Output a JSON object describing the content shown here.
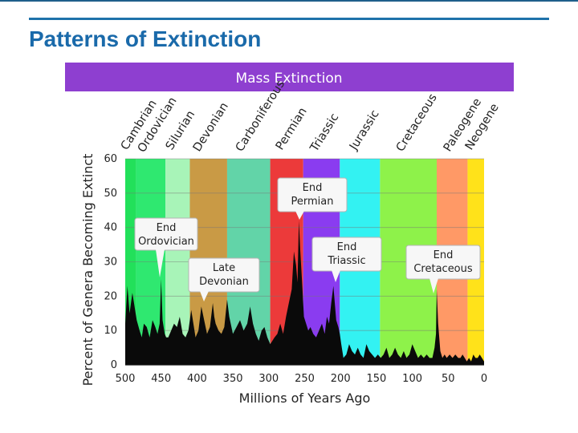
{
  "slide": {
    "title": "Patterns of Extinction"
  },
  "chart_data": {
    "type": "area",
    "title": "Mass Extinction",
    "xlabel": "Millions of Years Ago",
    "ylabel": "Percent of Genera Becoming Extinct",
    "xlim": [
      500,
      0
    ],
    "ylim": [
      0,
      60
    ],
    "xticks": [
      500,
      450,
      400,
      350,
      300,
      250,
      200,
      150,
      100,
      50,
      0
    ],
    "yticks": [
      0,
      10,
      20,
      30,
      40,
      50,
      60
    ],
    "grid": true,
    "colors": {
      "banner": "#8e3fd0",
      "area": "#0a0a0a"
    },
    "periods": [
      {
        "name": "Cambrian",
        "start": 500,
        "end": 485,
        "color": "#22e05a"
      },
      {
        "name": "Ordovician",
        "start": 485,
        "end": 444,
        "color": "#2fe870"
      },
      {
        "name": "Silurian",
        "start": 444,
        "end": 410,
        "color": "#a8f4b8"
      },
      {
        "name": "Devonian",
        "start": 410,
        "end": 358,
        "color": "#c99a45"
      },
      {
        "name": "Carboniferous",
        "start": 358,
        "end": 298,
        "color": "#62d4a8"
      },
      {
        "name": "Permian",
        "start": 298,
        "end": 252,
        "color": "#ec3a3a"
      },
      {
        "name": "Triassic",
        "start": 252,
        "end": 201,
        "color": "#8a3cf0"
      },
      {
        "name": "Jurassic",
        "start": 201,
        "end": 145,
        "color": "#33f2f2"
      },
      {
        "name": "Cretaceous",
        "start": 145,
        "end": 66,
        "color": "#8ef24a"
      },
      {
        "name": "Paleogene",
        "start": 66,
        "end": 23,
        "color": "#ff9966"
      },
      {
        "name": "Neogene",
        "start": 23,
        "end": 0,
        "color": "#ffe21a"
      }
    ],
    "series": [
      {
        "name": "Percent of genera becoming extinct",
        "x": [
          500,
          497,
          494,
          490,
          487,
          484,
          480,
          477,
          474,
          470,
          466,
          462,
          458,
          455,
          452,
          450,
          448,
          445,
          443,
          440,
          436,
          432,
          428,
          424,
          420,
          416,
          412,
          408,
          405,
          402,
          398,
          394,
          390,
          386,
          382,
          378,
          376,
          374,
          370,
          366,
          362,
          358,
          355,
          350,
          345,
          340,
          335,
          330,
          326,
          322,
          318,
          314,
          310,
          306,
          302,
          298,
          295,
          292,
          288,
          284,
          280,
          276,
          272,
          268,
          265,
          262,
          260,
          258,
          256,
          253,
          251,
          248,
          245,
          242,
          238,
          234,
          230,
          226,
          222,
          219,
          216,
          213,
          210,
          206,
          203,
          201,
          199,
          196,
          192,
          188,
          184,
          180,
          176,
          172,
          168,
          164,
          160,
          156,
          152,
          148,
          144,
          140,
          136,
          132,
          128,
          124,
          120,
          116,
          112,
          108,
          104,
          100,
          96,
          92,
          88,
          84,
          80,
          76,
          72,
          69,
          67,
          66,
          64,
          61,
          58,
          55,
          52,
          48,
          44,
          40,
          36,
          33,
          30,
          27,
          24,
          21,
          18,
          15,
          12,
          9,
          6,
          3,
          0
        ],
        "y": [
          12,
          23,
          15,
          21,
          17,
          13,
          10,
          8,
          12,
          11,
          8,
          13,
          11,
          9,
          12,
          25,
          13,
          9,
          8,
          8,
          10,
          12,
          11,
          14,
          9,
          8,
          10,
          16,
          12,
          8,
          10,
          17,
          13,
          9,
          11,
          18,
          14,
          12,
          10,
          9,
          11,
          19,
          14,
          9,
          11,
          13,
          10,
          12,
          17,
          12,
          9,
          7,
          10,
          11,
          8,
          6,
          7,
          8,
          9,
          12,
          9,
          14,
          18,
          22,
          33,
          29,
          24,
          42,
          33,
          22,
          14,
          12,
          10,
          11,
          9,
          8,
          10,
          12,
          9,
          14,
          12,
          18,
          23,
          13,
          11,
          9,
          6,
          2,
          3,
          6,
          4,
          3,
          5,
          3,
          2,
          6,
          4,
          3,
          2,
          3,
          2,
          3,
          5,
          2,
          3,
          5,
          3,
          2,
          4,
          2,
          3,
          6,
          4,
          2,
          3,
          2,
          3,
          2,
          2,
          5,
          9,
          22,
          12,
          4,
          2,
          3,
          2,
          3,
          2,
          3,
          2,
          2,
          3,
          2,
          1,
          2,
          1,
          3,
          2,
          2,
          3,
          2,
          1
        ]
      }
    ],
    "annotations": [
      {
        "lines": [
          "End",
          "Ordovician"
        ],
        "x": 445
      },
      {
        "lines": [
          "Late",
          "Devonian"
        ],
        "x": 372
      },
      {
        "lines": [
          "End",
          "Permian"
        ],
        "x": 251
      },
      {
        "lines": [
          "End",
          "Triassic"
        ],
        "x": 201
      },
      {
        "lines": [
          "End",
          "Cretaceous"
        ],
        "x": 66
      }
    ]
  }
}
